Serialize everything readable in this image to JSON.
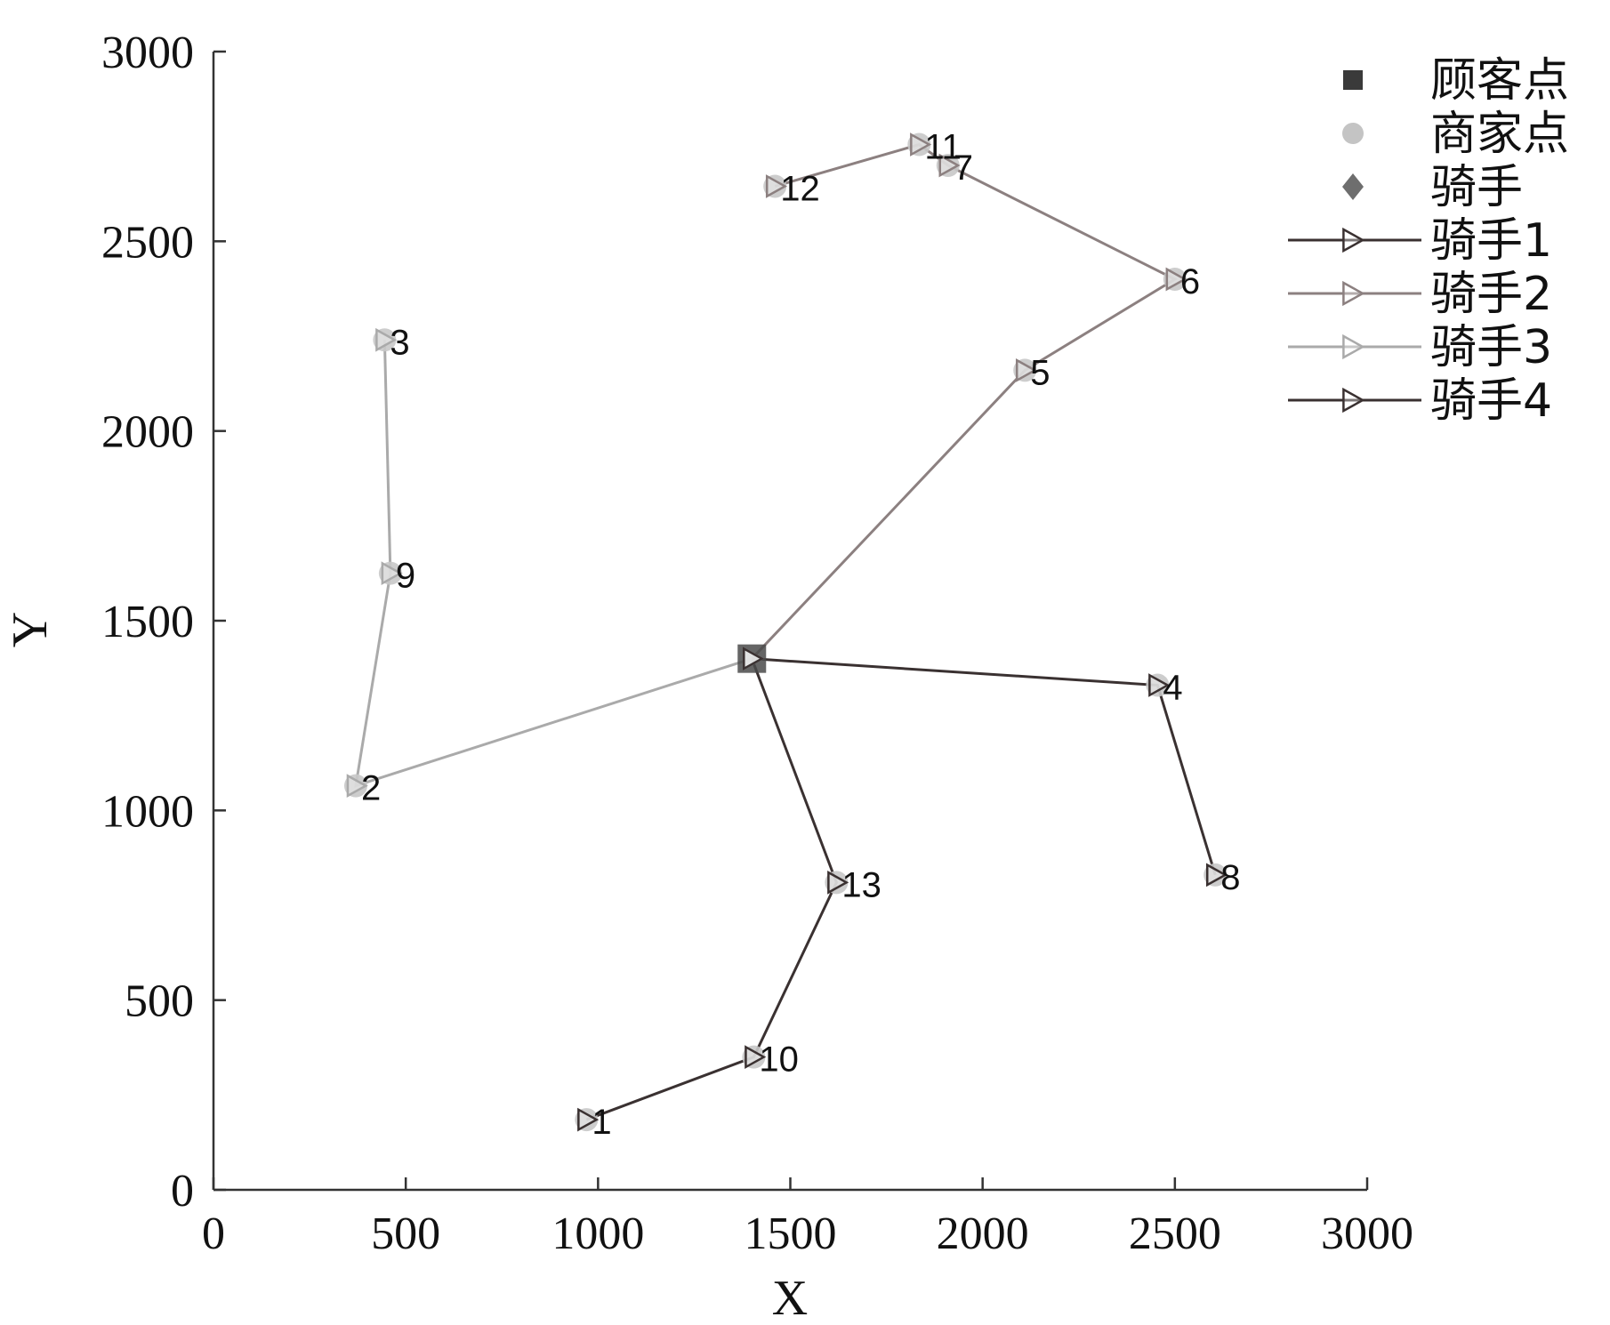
{
  "chart_data": {
    "type": "scatter",
    "xlabel": "X",
    "ylabel": "Y",
    "xlim": [
      0,
      3000
    ],
    "ylim": [
      0,
      3000
    ],
    "xticks": [
      0,
      500,
      1000,
      1500,
      2000,
      2500,
      3000
    ],
    "yticks": [
      0,
      500,
      1000,
      1500,
      2000,
      2500,
      3000
    ],
    "grid": false,
    "legend_position": "top-right",
    "legend": [
      {
        "label": "顾客点",
        "kind": "marker",
        "marker": "square",
        "color": "#3a3a3a"
      },
      {
        "label": "商家点",
        "kind": "marker",
        "marker": "circle",
        "color": "#c4c4c4"
      },
      {
        "label": "骑手",
        "kind": "marker",
        "marker": "diamond",
        "color": "#6e6e6e"
      },
      {
        "label": "骑手1",
        "kind": "line",
        "marker": "triangle-right",
        "color": "#3a3131"
      },
      {
        "label": "骑手2",
        "kind": "line",
        "marker": "triangle-right",
        "color": "#8c8080"
      },
      {
        "label": "骑手3",
        "kind": "line",
        "marker": "triangle-right",
        "color": "#aaaaaa"
      },
      {
        "label": "骑手4",
        "kind": "line",
        "marker": "triangle-right",
        "color": "#3a3131"
      }
    ],
    "points": [
      {
        "label": "1",
        "x": 970,
        "y": 185
      },
      {
        "label": "2",
        "x": 370,
        "y": 1065
      },
      {
        "label": "3",
        "x": 445,
        "y": 2240
      },
      {
        "label": "4",
        "x": 2455,
        "y": 1330
      },
      {
        "label": "5",
        "x": 2110,
        "y": 2160
      },
      {
        "label": "6",
        "x": 2500,
        "y": 2400
      },
      {
        "label": "7",
        "x": 1910,
        "y": 2700
      },
      {
        "label": "8",
        "x": 2605,
        "y": 830
      },
      {
        "label": "9",
        "x": 460,
        "y": 1625
      },
      {
        "label": "10",
        "x": 1405,
        "y": 350
      },
      {
        "label": "11",
        "x": 1835,
        "y": 2755
      },
      {
        "label": "12",
        "x": 1460,
        "y": 2645
      },
      {
        "label": "13",
        "x": 1620,
        "y": 810
      }
    ],
    "depot": {
      "x": 1400,
      "y": 1400
    },
    "series": [
      {
        "name": "骑手1",
        "color": "#3a3131",
        "x": [
          1400,
          1620,
          1405,
          970
        ],
        "y": [
          1400,
          810,
          350,
          185
        ]
      },
      {
        "name": "骑手2",
        "color": "#8c8080",
        "x": [
          1400,
          2110,
          2500,
          1910,
          1835,
          1460
        ],
        "y": [
          1400,
          2160,
          2400,
          2700,
          2755,
          2645
        ]
      },
      {
        "name": "骑手3",
        "color": "#aaaaaa",
        "x": [
          1400,
          370,
          460,
          445
        ],
        "y": [
          1400,
          1065,
          1625,
          2240
        ]
      },
      {
        "name": "骑手4",
        "color": "#3a3131",
        "x": [
          1400,
          2455,
          2605
        ],
        "y": [
          1400,
          1330,
          830
        ]
      }
    ]
  }
}
